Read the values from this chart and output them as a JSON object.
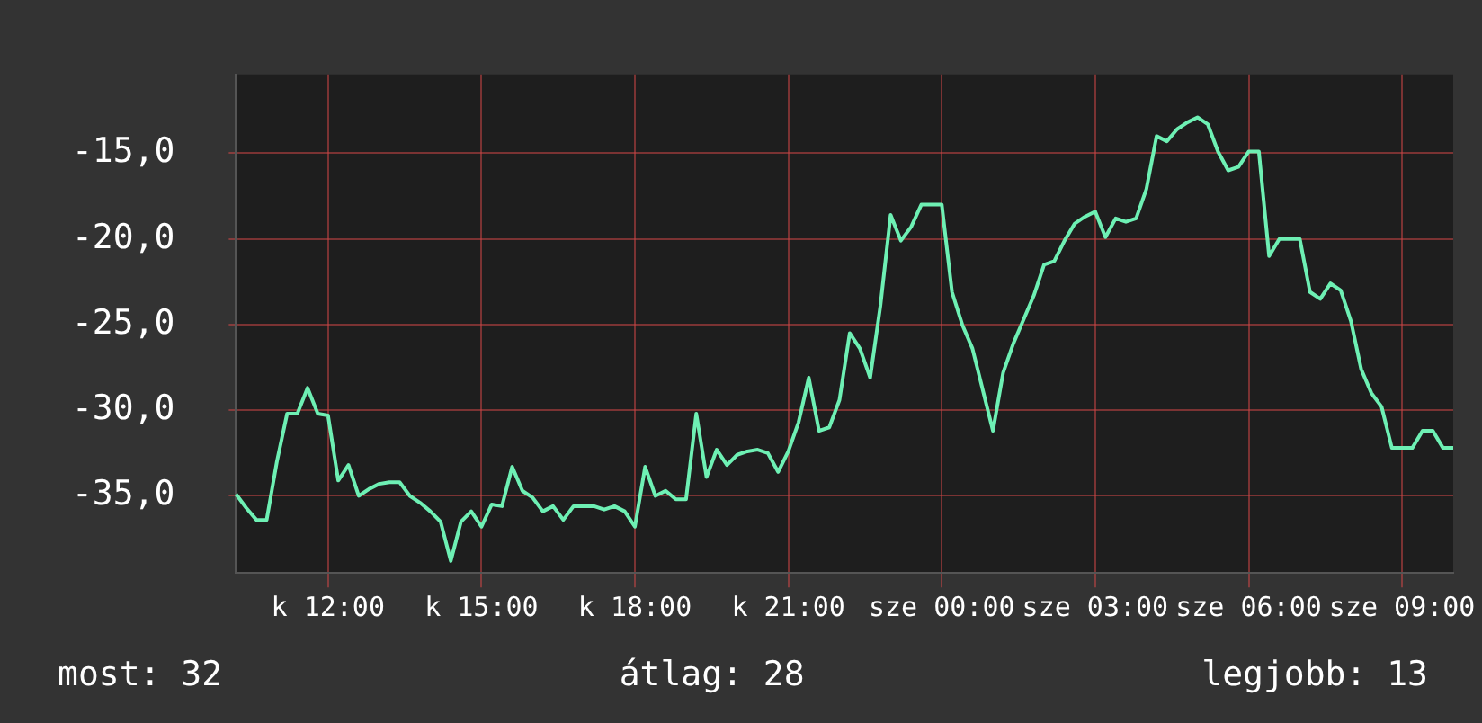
{
  "chart_data": {
    "type": "line",
    "categories": [
      null,
      null,
      null,
      null,
      null,
      null,
      null,
      null,
      null,
      "k 12:00",
      null,
      null,
      null,
      null,
      null,
      null,
      null,
      null,
      null,
      null,
      null,
      null,
      null,
      null,
      "k 15:00",
      null,
      null,
      null,
      null,
      null,
      null,
      null,
      null,
      null,
      null,
      null,
      null,
      null,
      null,
      "k 18:00",
      null,
      null,
      null,
      null,
      null,
      null,
      null,
      null,
      null,
      null,
      null,
      null,
      null,
      null,
      "k 21:00",
      null,
      null,
      null,
      null,
      null,
      null,
      null,
      null,
      null,
      null,
      null,
      null,
      null,
      null,
      "sze 00:00",
      null,
      null,
      null,
      null,
      null,
      null,
      null,
      null,
      null,
      null,
      null,
      null,
      null,
      null,
      "sze 03:00",
      null,
      null,
      null,
      null,
      null,
      null,
      null,
      null,
      null,
      null,
      null,
      null,
      null,
      null,
      "sze 06:00",
      null,
      null,
      null,
      null,
      null,
      null,
      null,
      null,
      null,
      null,
      null,
      null,
      null,
      null,
      "sze 09:00",
      null,
      null,
      null,
      null,
      null
    ],
    "series": [
      {
        "color": "#6ef0b4",
        "values": [
          -34.9,
          -35.7,
          -36.4,
          -36.4,
          -33.0,
          -30.2,
          -30.2,
          -28.7,
          -30.2,
          -30.3,
          -34.1,
          -33.2,
          -35.0,
          -34.6,
          -34.3,
          -34.2,
          -34.2,
          -35.0,
          -35.4,
          -35.9,
          -36.5,
          -38.8,
          -36.5,
          -35.9,
          -36.8,
          -35.5,
          -35.6,
          -33.3,
          -34.7,
          -35.1,
          -35.9,
          -35.6,
          -36.4,
          -35.6,
          -35.6,
          -35.6,
          -35.8,
          -35.6,
          -35.9,
          -36.8,
          -33.3,
          -35.0,
          -34.7,
          -35.2,
          -35.2,
          -30.2,
          -33.9,
          -32.3,
          -33.2,
          -32.6,
          -32.4,
          -32.3,
          -32.5,
          -33.6,
          -32.4,
          -30.7,
          -28.1,
          -31.2,
          -31.0,
          -29.4,
          -25.5,
          -26.4,
          -28.1,
          -23.9,
          -18.6,
          -20.1,
          -19.3,
          -18.0,
          -18.0,
          -18.0,
          -23.1,
          -25.0,
          -26.4,
          -28.8,
          -31.2,
          -27.8,
          -26.1,
          -24.7,
          -23.3,
          -21.5,
          -21.3,
          -20.1,
          -19.1,
          -18.7,
          -18.4,
          -19.9,
          -18.8,
          -19.0,
          -18.8,
          -17.1,
          -14.0,
          -14.3,
          -13.6,
          -13.2,
          -12.9,
          -13.3,
          -14.9,
          -16.0,
          -15.8,
          -14.9,
          -14.9,
          -21.0,
          -20.0,
          -20.0,
          -20.0,
          -23.1,
          -23.5,
          -22.6,
          -23.0,
          -24.8,
          -27.6,
          -29.0,
          -29.8,
          -32.2,
          -32.2,
          -32.2,
          -31.2,
          -31.2,
          -32.2,
          -32.2
        ]
      }
    ],
    "ylim": [
      -39.5,
      -10.4
    ],
    "yticks": [
      {
        "value": -35,
        "label": "-35,0"
      },
      {
        "value": -30,
        "label": "-30,0"
      },
      {
        "value": -25,
        "label": "-25,0"
      },
      {
        "value": -20,
        "label": "-20,0"
      },
      {
        "value": -15,
        "label": "-15,0"
      }
    ],
    "grid": true,
    "legend": false,
    "marker": "none",
    "line_style": "solid",
    "annotations": [
      "most: 32",
      "átlag: 28",
      "legjobb: 13"
    ]
  }
}
